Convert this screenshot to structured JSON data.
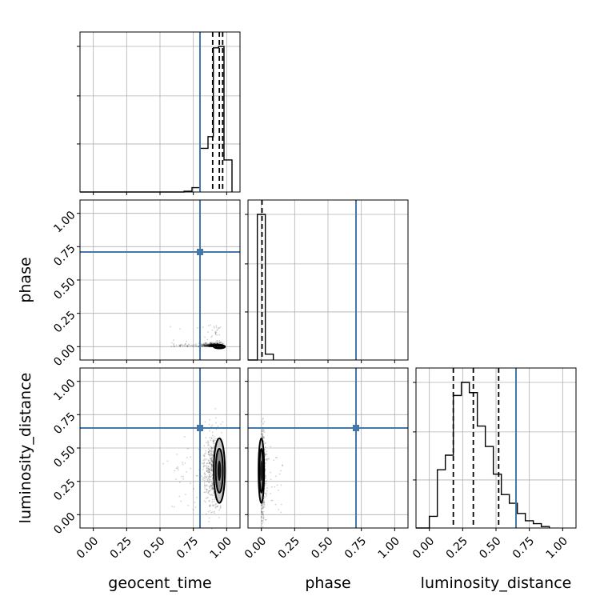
{
  "chart_data": {
    "type": "corner",
    "parameters": [
      "geocent_time",
      "phase",
      "luminosity_distance"
    ],
    "truths": {
      "geocent_time": 0.8,
      "phase": 0.71,
      "luminosity_distance": 0.65
    },
    "truth_color": "#4477aa",
    "range": [
      -0.1,
      1.1
    ],
    "ticks": [
      0.0,
      0.25,
      0.5,
      0.75,
      1.0
    ],
    "tick_labels": [
      "0.00",
      "0.25",
      "0.50",
      "0.75",
      "1.00"
    ],
    "grid": true,
    "histograms": {
      "geocent_time": {
        "edges": [
          0.68,
          0.74,
          0.8,
          0.86,
          0.9,
          0.94,
          0.98,
          1.04
        ],
        "counts": [
          0.005,
          0.03,
          0.3,
          0.38,
          0.99,
          1.0,
          0.22
        ],
        "quantiles": [
          0.895,
          0.945,
          0.97
        ]
      },
      "phase": {
        "edges": [
          -0.03,
          0.03,
          0.09
        ],
        "counts": [
          1.0,
          0.04
        ],
        "quantiles": [
          0.005
        ]
      },
      "luminosity_distance": {
        "edges": [
          0.0,
          0.06,
          0.12,
          0.18,
          0.24,
          0.3,
          0.36,
          0.42,
          0.48,
          0.54,
          0.6,
          0.66,
          0.72,
          0.78,
          0.84,
          0.9
        ],
        "counts": [
          0.08,
          0.4,
          0.5,
          0.91,
          1.0,
          0.93,
          0.7,
          0.56,
          0.37,
          0.23,
          0.17,
          0.1,
          0.05,
          0.03,
          0.01
        ],
        "quantiles": [
          0.18,
          0.33,
          0.52
        ]
      }
    }
  }
}
